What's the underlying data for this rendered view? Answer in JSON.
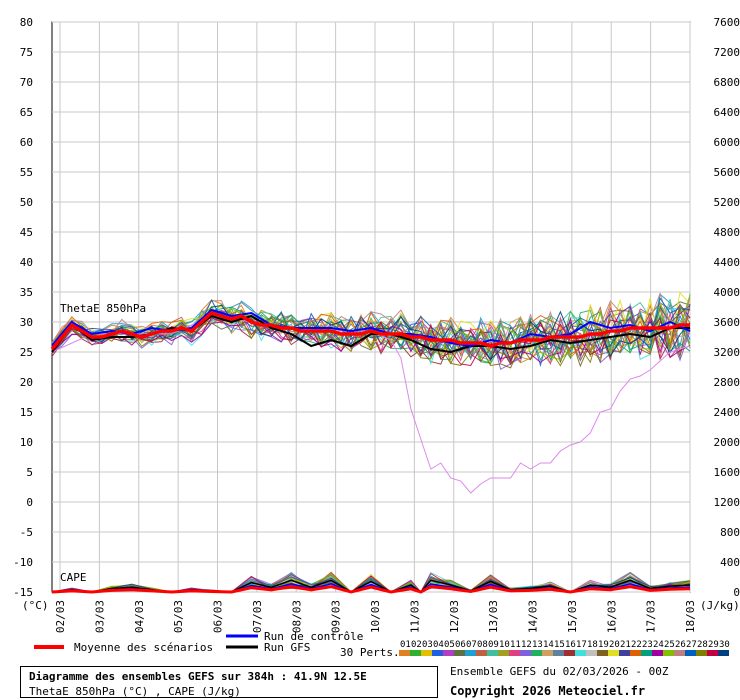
{
  "chart_data": {
    "type": "line",
    "left_axis": {
      "unit": "(°C)",
      "ylim": [
        -15,
        80
      ],
      "ticks": [
        80,
        75,
        70,
        65,
        60,
        55,
        50,
        45,
        40,
        35,
        30,
        25,
        20,
        15,
        10,
        5,
        0,
        -5,
        -10,
        -15
      ]
    },
    "right_axis": {
      "unit": "(J/kg)",
      "ylim": [
        0,
        7600
      ],
      "ticks": [
        7600,
        7200,
        6800,
        6400,
        6000,
        5600,
        5200,
        4800,
        4400,
        4000,
        3600,
        3200,
        2800,
        2400,
        2000,
        1600,
        1200,
        800,
        400,
        0
      ]
    },
    "x_ticks": [
      "02/03",
      "03/03",
      "04/03",
      "05/03",
      "06/03",
      "07/03",
      "08/03",
      "09/03",
      "10/03",
      "11/03",
      "12/03",
      "13/03",
      "14/03",
      "15/03",
      "16/03",
      "17/03",
      "18/03"
    ],
    "x_range_hours": [
      0,
      384
    ],
    "series_labels": {
      "thetae": "ThetaE 850hPa",
      "cape": "CAPE"
    },
    "thetae_mean": {
      "name": "Moyenne des scénarios",
      "color": "#ff0000",
      "x_hours": [
        0,
        6,
        12,
        18,
        24,
        30,
        36,
        42,
        48,
        54,
        60,
        66,
        72,
        78,
        84,
        90,
        96,
        102,
        108,
        114,
        120,
        126,
        132,
        138,
        144,
        150,
        156,
        162,
        168,
        174,
        180,
        186,
        192,
        198,
        204,
        210,
        216,
        222,
        228,
        234,
        240,
        246,
        252,
        258,
        264,
        270,
        276,
        282,
        288,
        294,
        300,
        306,
        312,
        318,
        324,
        330,
        336,
        342,
        348,
        354,
        360,
        366,
        372,
        378,
        384
      ],
      "values": [
        25.5,
        27.5,
        29.5,
        28.5,
        27.5,
        27.5,
        28,
        28.5,
        28,
        27.5,
        28,
        28.5,
        28.5,
        29,
        28.5,
        30,
        31.5,
        31,
        30.5,
        31,
        30,
        29.5,
        29.5,
        29,
        29,
        28.5,
        28.5,
        28.5,
        28.5,
        28,
        28,
        28,
        28.5,
        28,
        28,
        28,
        27.5,
        27.5,
        27,
        27,
        27,
        26.5,
        26.5,
        26.5,
        26,
        26.5,
        26.5,
        27,
        27,
        27,
        27.5,
        27.5,
        27.5,
        27.5,
        28,
        28,
        28.5,
        28.5,
        29,
        29,
        29,
        29,
        29,
        29.5,
        29.5
      ]
    },
    "thetae_control": {
      "name": "Run de contrôle",
      "color": "#0000ff",
      "x_hours": [
        0,
        12,
        24,
        36,
        48,
        60,
        72,
        84,
        96,
        108,
        120,
        132,
        144,
        156,
        168,
        180,
        192,
        204,
        216,
        228,
        240,
        252,
        264,
        276,
        288,
        300,
        312,
        324,
        336,
        348,
        360,
        372,
        384
      ],
      "values": [
        26,
        30,
        28,
        28.5,
        28,
        29,
        28.5,
        29,
        32,
        31,
        31.5,
        29.5,
        29,
        29,
        29,
        28.5,
        29,
        28,
        28,
        27.5,
        26.5,
        26,
        27,
        26.5,
        28,
        27.5,
        28,
        30,
        29,
        29.5,
        28.5,
        30,
        28.5
      ]
    },
    "thetae_gfs": {
      "name": "Run GFS",
      "color": "#000000",
      "x_hours": [
        0,
        12,
        24,
        36,
        48,
        60,
        72,
        84,
        96,
        108,
        120,
        132,
        144,
        156,
        168,
        180,
        192,
        204,
        216,
        228,
        240,
        252,
        264,
        276,
        288,
        300,
        312,
        324,
        336,
        348,
        360,
        372,
        384
      ],
      "values": [
        25,
        29.5,
        27,
        27.5,
        27.5,
        28,
        29,
        28.5,
        31,
        30,
        31,
        29,
        28,
        26,
        27,
        26,
        28,
        28,
        27,
        25.5,
        25,
        26,
        26,
        25.5,
        26,
        27,
        26.5,
        27,
        27.5,
        28,
        27.5,
        29,
        29
      ]
    },
    "thetae_outlier_member": {
      "name": "",
      "color": "#dd88ee",
      "x_hours": [
        0,
        24,
        48,
        72,
        96,
        120,
        144,
        168,
        192,
        204,
        210,
        216,
        222,
        228,
        234,
        240,
        246,
        252,
        258,
        264,
        270,
        276,
        282,
        288,
        294,
        300,
        306,
        312,
        318,
        324,
        330,
        336,
        342,
        348,
        354,
        360,
        372,
        384
      ],
      "values": [
        25,
        28,
        28,
        28,
        31,
        30,
        29,
        28.5,
        28.5,
        27,
        24,
        15.5,
        10.5,
        5.5,
        6.5,
        4,
        3.5,
        1.5,
        3,
        4,
        4,
        4,
        6.5,
        5.5,
        6.5,
        6.5,
        8.5,
        9.5,
        10,
        11.5,
        15,
        15.5,
        18.5,
        20.5,
        21,
        22,
        25,
        26
      ]
    },
    "perturbation_count_label": "30 Perts.",
    "perturbations": [
      "01",
      "02",
      "03",
      "04",
      "05",
      "06",
      "07",
      "08",
      "09",
      "10",
      "11",
      "12",
      "13",
      "14",
      "15",
      "16",
      "17",
      "18",
      "19",
      "20",
      "21",
      "22",
      "23",
      "24",
      "25",
      "26",
      "27",
      "28",
      "29",
      "30"
    ],
    "perturbation_colors": [
      "#e08020",
      "#30b030",
      "#e0c000",
      "#2060e0",
      "#b040c0",
      "#607040",
      "#20a0d0",
      "#c06040",
      "#40c0a0",
      "#a0a020",
      "#e04080",
      "#8060e0",
      "#20b060",
      "#d0a060",
      "#6080a0",
      "#a03030",
      "#40e0e0",
      "#c0c0c0",
      "#806020",
      "#e0e020",
      "#4040a0",
      "#e06000",
      "#00a080",
      "#a000a0",
      "#80c000",
      "#c08080",
      "#0060c0",
      "#808000",
      "#c00040",
      "#004080"
    ],
    "cape_mean": {
      "x_hours": [
        0,
        12,
        24,
        36,
        48,
        60,
        72,
        84,
        96,
        108,
        120,
        132,
        144,
        156,
        168,
        180,
        192,
        204,
        216,
        222,
        228,
        240,
        252,
        264,
        276,
        288,
        300,
        312,
        324,
        336,
        348,
        360,
        372,
        384
      ],
      "values": [
        0,
        20,
        0,
        30,
        40,
        20,
        0,
        20,
        10,
        0,
        80,
        40,
        100,
        40,
        100,
        0,
        90,
        0,
        60,
        0,
        100,
        60,
        10,
        90,
        20,
        30,
        50,
        0,
        60,
        40,
        100,
        30,
        50,
        60
      ]
    }
  },
  "legend": {
    "mean_label": "Moyenne des scénarios",
    "control_label": "Run de contrôle",
    "gfs_label": "Run GFS"
  },
  "info": {
    "title": "Diagramme des ensembles GEFS sur 384h : 41.9N 12.5E",
    "subtitle": "ThetaE 850hPa (°C) , CAPE (J/kg)",
    "run": "Ensemble GEFS du 02/03/2026 - 00Z",
    "copyright": "Copyright 2026 Meteociel.fr"
  }
}
